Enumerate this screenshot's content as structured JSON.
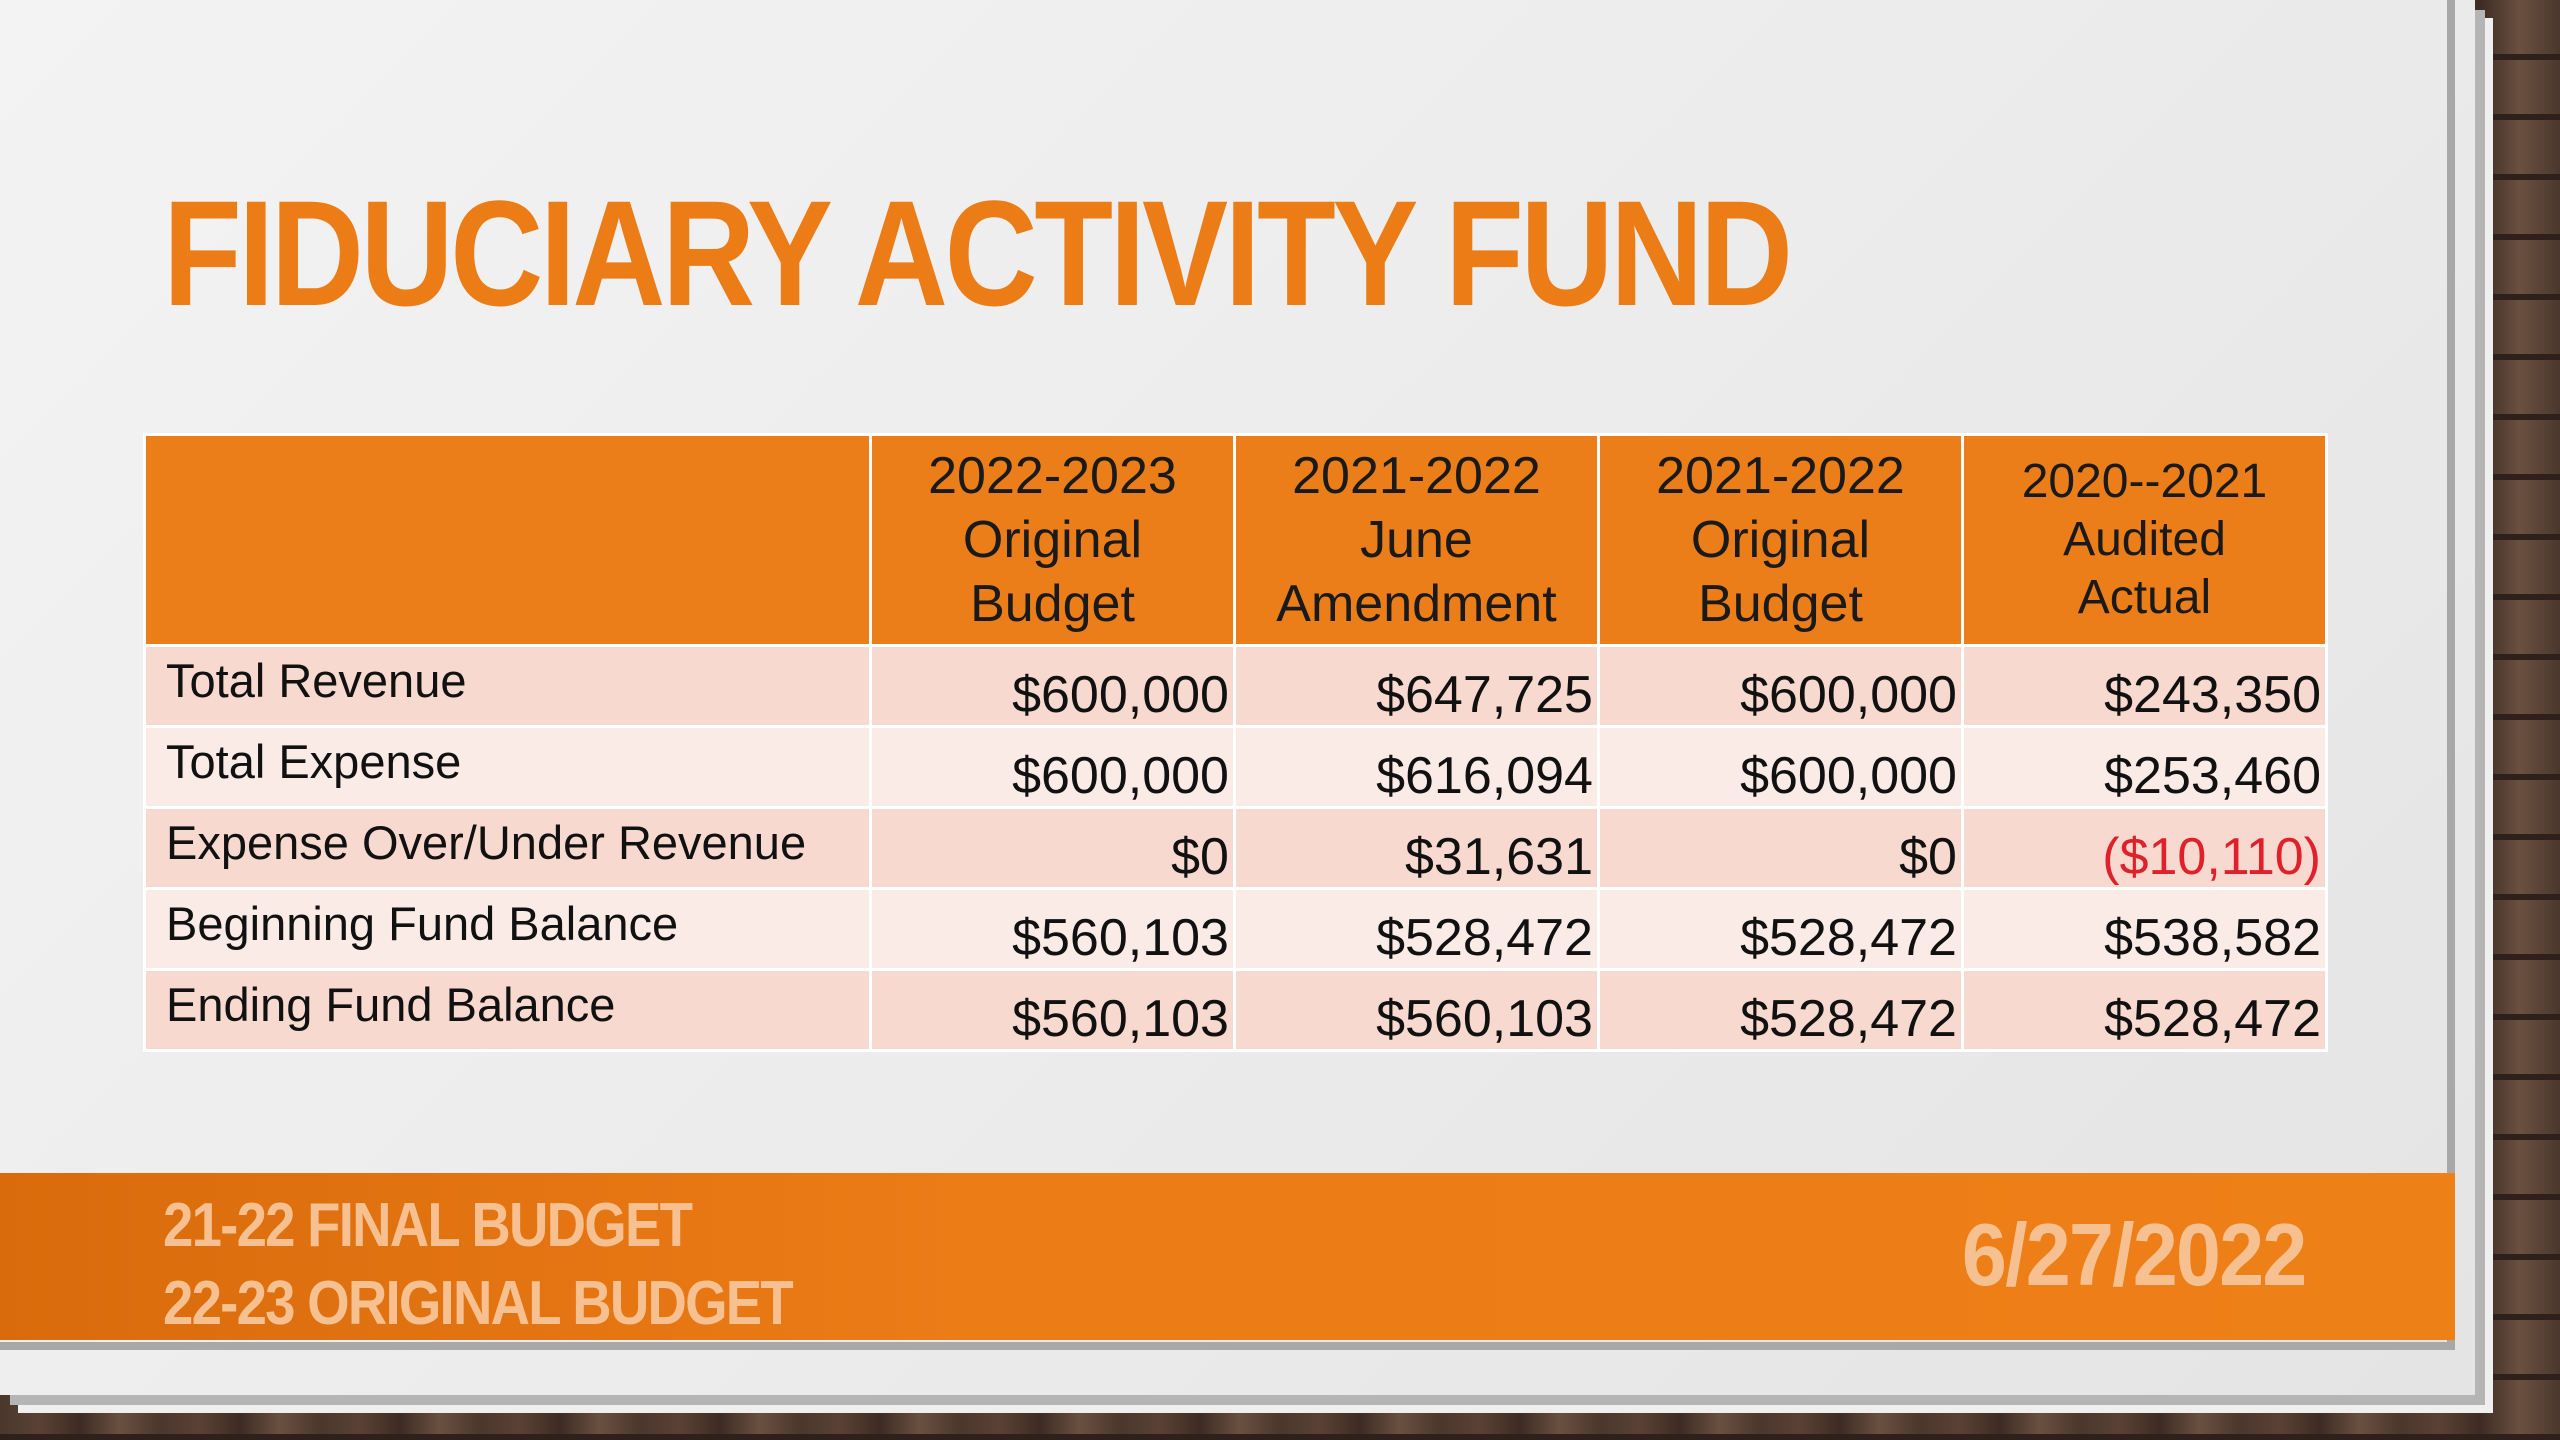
{
  "slide": {
    "title": "FIDUCIARY ACTIVITY FUND"
  },
  "table": {
    "header": [
      {
        "lines": []
      },
      {
        "lines": [
          "2022-2023",
          "Original",
          "Budget"
        ]
      },
      {
        "lines": [
          "2021-2022",
          "June",
          "Amendment"
        ]
      },
      {
        "lines": [
          "2021-2022",
          "Original",
          "Budget"
        ]
      },
      {
        "lines": [
          "2020--2021",
          "Audited",
          "Actual"
        ]
      }
    ],
    "rows": [
      {
        "label": "Total Revenue",
        "values": [
          "$600,000",
          "$647,725",
          "$600,000",
          "$243,350"
        ]
      },
      {
        "label": "Total Expense",
        "values": [
          "$600,000",
          "$616,094",
          "$600,000",
          "$253,460"
        ]
      },
      {
        "label": "Expense Over/Under Revenue",
        "values": [
          "$0",
          "$31,631",
          "$0",
          "($10,110)"
        ]
      },
      {
        "label": "Beginning Fund Balance",
        "values": [
          "$560,103",
          "$528,472",
          "$528,472",
          "$538,582"
        ]
      },
      {
        "label": "Ending Fund Balance",
        "values": [
          "$560,103",
          "$560,103",
          "$528,472",
          "$528,472"
        ]
      }
    ],
    "colors": {
      "header_bg": "#ec7e1a",
      "row_odd_bg": "#f7d9cf",
      "row_even_bg": "#fbebe6",
      "negative_text": "#e0202a"
    }
  },
  "footer": {
    "line1": "21-22 FINAL BUDGET",
    "line2": "22-23 ORIGINAL BUDGET",
    "date": "6/27/2022"
  },
  "colors": {
    "accent": "#ec7c16",
    "footer_text": "#f6c090"
  }
}
